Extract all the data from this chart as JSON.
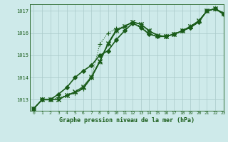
{
  "title": "Graphe pression niveau de la mer (hPa)",
  "bg_color": "#ceeaea",
  "grid_color": "#aacaca",
  "line_color": "#1a5c1a",
  "xlim": [
    -0.5,
    23
  ],
  "ylim": [
    1012.5,
    1017.3
  ],
  "yticks": [
    1013,
    1014,
    1015,
    1016,
    1017
  ],
  "xticks": [
    0,
    1,
    2,
    3,
    4,
    5,
    6,
    7,
    8,
    9,
    10,
    11,
    12,
    13,
    14,
    15,
    16,
    17,
    18,
    19,
    20,
    21,
    22,
    23
  ],
  "series": [
    {
      "values": [
        1012.6,
        1013.0,
        1013.0,
        1013.0,
        1013.2,
        1013.3,
        1013.5,
        1014.0,
        1014.7,
        1015.5,
        1016.1,
        1016.3,
        1016.5,
        1016.4,
        1016.1,
        1015.9,
        1015.85,
        1015.95,
        1016.1,
        1016.3,
        1016.55,
        1017.0,
        1017.1,
        1016.9
      ],
      "lw": 1.0,
      "ls": "-",
      "marker": "+",
      "ms": 4
    },
    {
      "values": [
        1012.6,
        1013.0,
        1013.0,
        1013.0,
        1013.2,
        1013.35,
        1013.55,
        1014.0,
        1014.7,
        1015.5,
        1016.1,
        1016.3,
        1016.5,
        1016.4,
        1016.1,
        1015.9,
        1015.85,
        1015.95,
        1016.1,
        1016.3,
        1016.55,
        1017.0,
        1017.1,
        1016.9
      ],
      "lw": 0.8,
      "ls": "-",
      "marker": "x",
      "ms": 4
    },
    {
      "values": [
        1012.6,
        1013.0,
        1013.0,
        1013.0,
        1013.2,
        1013.35,
        1013.6,
        1014.05,
        1014.75,
        1015.55,
        1016.15,
        1016.3,
        1016.5,
        1016.4,
        1016.1,
        1015.9,
        1015.85,
        1015.95,
        1016.1,
        1016.3,
        1016.55,
        1017.0,
        1017.1,
        1016.9
      ],
      "lw": 0.8,
      "ls": "-",
      "marker": "x",
      "ms": 4
    },
    {
      "values": [
        1012.6,
        1013.0,
        1013.0,
        1013.1,
        1013.2,
        1013.3,
        1013.5,
        1014.0,
        1015.5,
        1016.0,
        1016.2,
        1016.3,
        1016.5,
        1016.3,
        1016.0,
        1015.85,
        1015.85,
        1015.95,
        1016.1,
        1016.25,
        1016.5,
        1017.0,
        1017.1,
        1016.85
      ],
      "lw": 0.8,
      "ls": ":",
      "marker": "+",
      "ms": 4
    },
    {
      "values": [
        1012.6,
        1013.0,
        1013.0,
        1013.25,
        1013.55,
        1014.0,
        1014.3,
        1014.55,
        1015.0,
        1015.2,
        1015.7,
        1016.1,
        1016.45,
        1016.25,
        1015.95,
        1015.85,
        1015.85,
        1015.95,
        1016.1,
        1016.25,
        1016.5,
        1017.0,
        1017.1,
        1016.85
      ],
      "lw": 1.2,
      "ls": "-",
      "marker": "D",
      "ms": 3
    }
  ]
}
